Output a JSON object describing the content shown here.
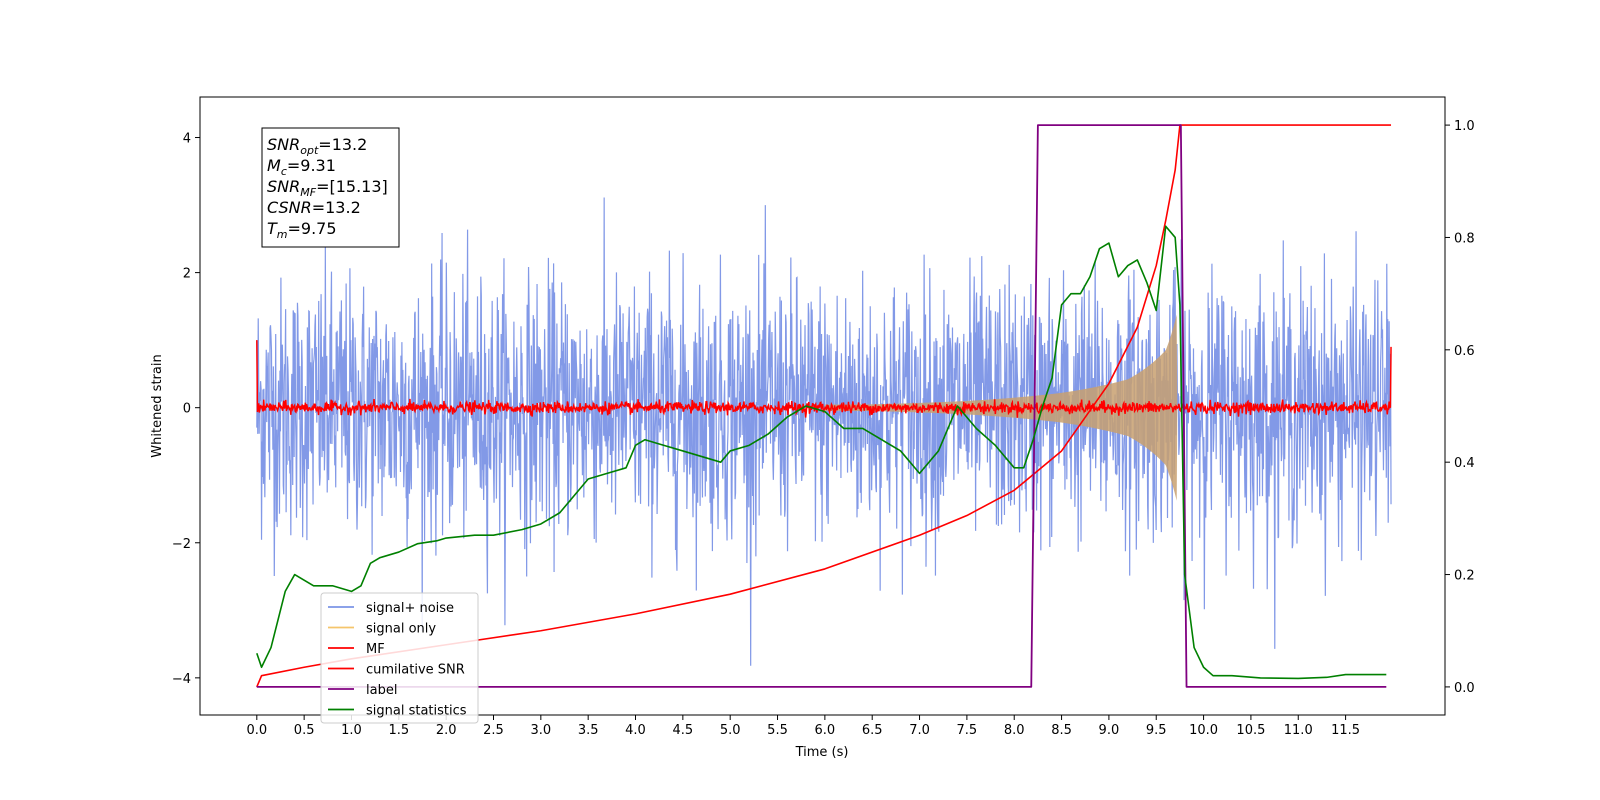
{
  "chart_data": {
    "type": "line",
    "xlabel": "Time (s)",
    "ylabel": "Whitened strain",
    "xlim": [
      -0.6,
      12.55
    ],
    "ylim": [
      -4.55,
      4.6
    ],
    "ylim_right": [
      -0.05,
      1.05
    ],
    "x_ticks": [
      "0.0",
      "0.5",
      "1.0",
      "1.5",
      "2.0",
      "2.5",
      "3.0",
      "3.5",
      "4.0",
      "4.5",
      "5.0",
      "5.5",
      "6.0",
      "6.5",
      "7.0",
      "7.5",
      "8.0",
      "8.5",
      "9.0",
      "9.5",
      "10.0",
      "10.5",
      "11.0",
      "11.5"
    ],
    "y_ticks": [
      -4,
      -2,
      0,
      2,
      4
    ],
    "y_ticks_right": [
      0.0,
      0.2,
      0.4,
      0.6,
      0.8,
      1.0
    ],
    "grid": false,
    "legend_placement": "lower-left",
    "stats_box": {
      "snr_opt_base": "SNR",
      "snr_opt_sub": "opt",
      "snr_opt_value": "=13.2",
      "mc_base": "M",
      "mc_sub": "c",
      "mc_value": "=9.31",
      "snr_mf_base": "SNR",
      "snr_mf_sub": "MF",
      "snr_mf_value": "=[15.13]",
      "csnr_base": "CSNR",
      "csnr_value": "=13.2",
      "tm_base": "T",
      "tm_sub": "m",
      "tm_value": "=9.75"
    },
    "series": [
      {
        "name": "signal+ noise",
        "color": "#7b94e6",
        "axis": "left",
        "description": "noise envelope",
        "x_range": [
          0,
          11.98
        ],
        "sd": 0.95,
        "peak_max": 3.7
      },
      {
        "name": "signal only",
        "color": "#f5c56b",
        "axis": "left",
        "x_range": [
          0,
          11.98
        ],
        "envelope": [
          [
            0,
            0.02
          ],
          [
            6.5,
            0.05
          ],
          [
            7.5,
            0.1
          ],
          [
            8.5,
            0.22
          ],
          [
            9.2,
            0.42
          ],
          [
            9.6,
            0.85
          ],
          [
            9.72,
            1.4
          ],
          [
            9.76,
            0.0
          ]
        ]
      },
      {
        "name": "MF",
        "color": "#ff0000",
        "axis": "left",
        "x_range": [
          0,
          11.98
        ],
        "level": 0.0,
        "spread": 0.08,
        "end_values": [
          1.0,
          0.9
        ]
      },
      {
        "name": "cumilative SNR",
        "color": "#ff0000",
        "axis": "right",
        "x": [
          0.0,
          0.05,
          0.5,
          1.0,
          2.0,
          3.0,
          4.0,
          5.0,
          6.0,
          7.0,
          7.5,
          8.0,
          8.5,
          9.0,
          9.3,
          9.5,
          9.6,
          9.7,
          9.75,
          9.8,
          11.98
        ],
        "y": [
          0.0,
          0.02,
          0.035,
          0.05,
          0.075,
          0.1,
          0.13,
          0.165,
          0.21,
          0.27,
          0.305,
          0.35,
          0.42,
          0.54,
          0.64,
          0.75,
          0.83,
          0.92,
          1.0,
          1.0,
          1.0
        ]
      },
      {
        "name": "label",
        "color": "#800080",
        "axis": "right",
        "x": [
          0.0,
          8.18,
          8.25,
          9.76,
          9.82,
          11.93
        ],
        "y": [
          0.0,
          0.0,
          1.0,
          1.0,
          0.0,
          0.0
        ]
      },
      {
        "name": "signal statistics",
        "color": "#008000",
        "axis": "right",
        "x": [
          0.0,
          0.05,
          0.15,
          0.3,
          0.4,
          0.5,
          0.6,
          0.8,
          1.0,
          1.1,
          1.2,
          1.3,
          1.5,
          1.7,
          1.9,
          2.0,
          2.3,
          2.5,
          2.8,
          3.0,
          3.2,
          3.5,
          3.7,
          3.9,
          4.0,
          4.1,
          4.3,
          4.5,
          4.7,
          4.9,
          5.0,
          5.2,
          5.4,
          5.6,
          5.8,
          6.0,
          6.2,
          6.4,
          6.6,
          6.8,
          7.0,
          7.2,
          7.4,
          7.6,
          7.8,
          8.0,
          8.1,
          8.2,
          8.3,
          8.4,
          8.5,
          8.6,
          8.7,
          8.8,
          8.9,
          9.0,
          9.1,
          9.2,
          9.3,
          9.4,
          9.5,
          9.6,
          9.7,
          9.75,
          9.8,
          9.9,
          10.0,
          10.1,
          10.3,
          10.6,
          11.0,
          11.3,
          11.5,
          11.8,
          11.93
        ],
        "y": [
          0.06,
          0.035,
          0.07,
          0.17,
          0.2,
          0.19,
          0.18,
          0.18,
          0.17,
          0.18,
          0.22,
          0.23,
          0.24,
          0.255,
          0.26,
          0.265,
          0.27,
          0.27,
          0.28,
          0.29,
          0.31,
          0.37,
          0.38,
          0.39,
          0.43,
          0.44,
          0.43,
          0.42,
          0.41,
          0.4,
          0.42,
          0.43,
          0.45,
          0.48,
          0.5,
          0.49,
          0.46,
          0.46,
          0.44,
          0.42,
          0.38,
          0.42,
          0.5,
          0.46,
          0.43,
          0.39,
          0.39,
          0.44,
          0.5,
          0.55,
          0.68,
          0.7,
          0.7,
          0.73,
          0.78,
          0.79,
          0.73,
          0.75,
          0.76,
          0.72,
          0.67,
          0.82,
          0.8,
          0.68,
          0.2,
          0.07,
          0.035,
          0.02,
          0.02,
          0.016,
          0.015,
          0.017,
          0.022,
          0.022,
          0.022
        ]
      }
    ]
  }
}
